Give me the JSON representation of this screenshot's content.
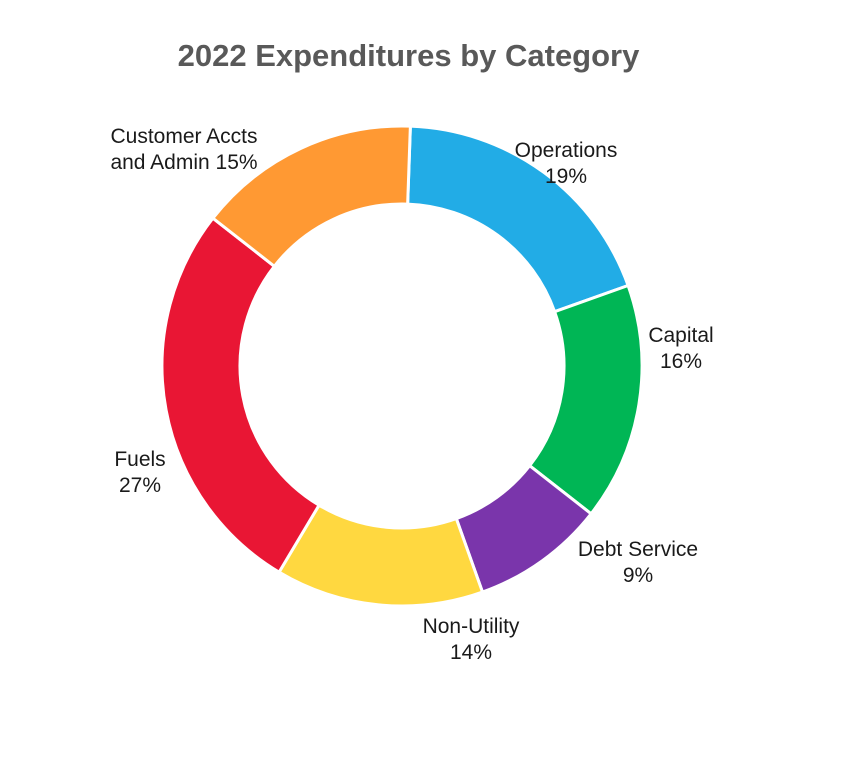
{
  "chart_data": {
    "type": "pie",
    "title": "2022 Expenditures by Category",
    "donut": true,
    "start_angle_deg": 2,
    "direction": "clockwise",
    "slices": [
      {
        "key": "operations",
        "label_lines": [
          "Operations",
          "19%"
        ],
        "value": 19,
        "color": "#22ACE6"
      },
      {
        "key": "capital",
        "label_lines": [
          "Capital",
          "16%"
        ],
        "value": 16,
        "color": "#00B655"
      },
      {
        "key": "debt-service",
        "label_lines": [
          "Debt Service",
          "9%"
        ],
        "value": 9,
        "color": "#7A35AB"
      },
      {
        "key": "non-utility",
        "label_lines": [
          "Non-Utility",
          "14%"
        ],
        "value": 14,
        "color": "#FFD840"
      },
      {
        "key": "fuels",
        "label_lines": [
          "Fuels",
          "27%"
        ],
        "value": 27,
        "color": "#E91634"
      },
      {
        "key": "customer-accts-admin",
        "label_lines": [
          "Customer Accts",
          "and Admin 15%"
        ],
        "value": 15,
        "color": "#FF9933"
      }
    ],
    "legend": "none"
  }
}
